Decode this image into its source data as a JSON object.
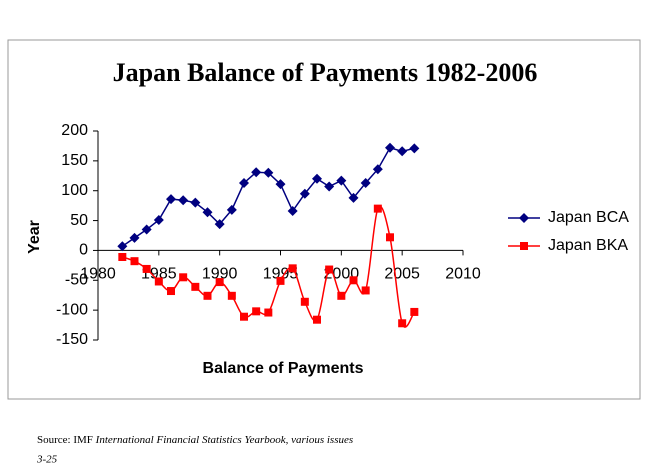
{
  "chart_data": {
    "type": "line",
    "title": "Japan Balance of Payments 1982-2006",
    "x_label": "Balance of Payments",
    "y_label": "Year",
    "x": [
      1982,
      1983,
      1984,
      1985,
      1986,
      1987,
      1988,
      1989,
      1990,
      1991,
      1992,
      1993,
      1994,
      1995,
      1996,
      1997,
      1998,
      1999,
      2000,
      2001,
      2002,
      2003,
      2004,
      2005,
      2006
    ],
    "series": [
      {
        "name": "Japan BCA",
        "color": "#000080",
        "marker": "diamond",
        "smooth": false,
        "values": [
          7,
          21,
          35,
          51,
          86,
          84,
          80,
          64,
          44,
          68,
          113,
          131,
          130,
          111,
          66,
          95,
          120,
          107,
          117,
          88,
          113,
          136,
          172,
          166,
          171
        ]
      },
      {
        "name": "Japan BKA",
        "color": "#ff0000",
        "marker": "square",
        "smooth": true,
        "values": [
          -11,
          -18,
          -31,
          -52,
          -68,
          -45,
          -61,
          -76,
          -53,
          -76,
          -111,
          -102,
          -104,
          -51,
          -30,
          -86,
          -116,
          -32,
          -76,
          -50,
          -67,
          70,
          22,
          -122,
          -103
        ]
      }
    ],
    "xlim": [
      1980,
      2010
    ],
    "xticks": [
      1980,
      1985,
      1990,
      1995,
      2000,
      2005,
      2010
    ],
    "ylim": [
      -150,
      200
    ],
    "yticks": [
      -150,
      -100,
      -50,
      0,
      50,
      100,
      150,
      200
    ],
    "grid": false,
    "legend": "right"
  },
  "footer": {
    "source": "Source: IMF",
    "publication": "International Financial Statistics Yearbook, various issues",
    "page": "3-25"
  }
}
